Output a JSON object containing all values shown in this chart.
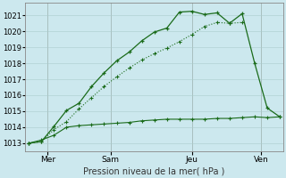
{
  "xlabel": "Pression niveau de la mer( hPa )",
  "bg_color": "#cce8ee",
  "grid_color": "#aacccc",
  "line_color": "#1a6b1a",
  "ylim": [
    1012.5,
    1021.8
  ],
  "yticks": [
    1013,
    1014,
    1015,
    1016,
    1017,
    1018,
    1019,
    1020,
    1021
  ],
  "xlim": [
    -0.3,
    20.3
  ],
  "xtick_positions": [
    1.5,
    6.5,
    13.0,
    18.5
  ],
  "xtick_labels": [
    "Mer",
    "Sam",
    "Jeu",
    "Ven"
  ],
  "series_flat_x": [
    0,
    1,
    2,
    3,
    4,
    5,
    6,
    7,
    8,
    9,
    10,
    11,
    12,
    13,
    14,
    15,
    16,
    17,
    18,
    19,
    20
  ],
  "series_flat_y": [
    1013.0,
    1013.2,
    1013.5,
    1014.0,
    1014.1,
    1014.15,
    1014.2,
    1014.25,
    1014.3,
    1014.4,
    1014.45,
    1014.5,
    1014.5,
    1014.5,
    1014.5,
    1014.55,
    1014.55,
    1014.6,
    1014.65,
    1014.6,
    1014.65
  ],
  "series_main_x": [
    0,
    1,
    2,
    3,
    4,
    5,
    6,
    7,
    8,
    9,
    10,
    11,
    12,
    13,
    14,
    15,
    16,
    17,
    18,
    19,
    20
  ],
  "series_main_y": [
    1013.0,
    1013.1,
    1014.05,
    1015.05,
    1015.5,
    1016.55,
    1017.4,
    1018.15,
    1018.7,
    1019.4,
    1019.95,
    1020.2,
    1021.2,
    1021.25,
    1021.05,
    1021.15,
    1020.5,
    1021.1,
    1018.0,
    1015.2,
    1014.65
  ],
  "series_dotted_x": [
    0,
    1,
    2,
    3,
    4,
    5,
    6,
    7,
    8,
    9,
    10,
    11,
    12,
    13,
    14,
    15,
    16,
    17
  ],
  "series_dotted_y": [
    1013.0,
    1013.1,
    1013.85,
    1014.35,
    1015.15,
    1015.85,
    1016.55,
    1017.15,
    1017.7,
    1018.2,
    1018.6,
    1018.95,
    1019.35,
    1019.8,
    1020.3,
    1020.55,
    1020.5,
    1020.55
  ]
}
